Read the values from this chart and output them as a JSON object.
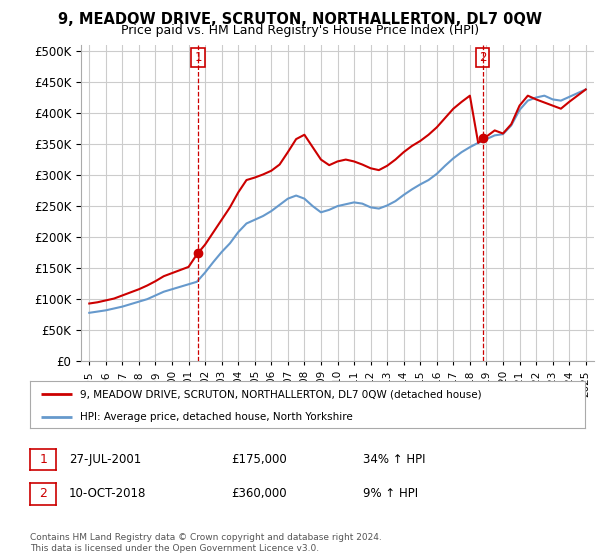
{
  "title": "9, MEADOW DRIVE, SCRUTON, NORTHALLERTON, DL7 0QW",
  "subtitle": "Price paid vs. HM Land Registry's House Price Index (HPI)",
  "legend_label1": "9, MEADOW DRIVE, SCRUTON, NORTHALLERTON, DL7 0QW (detached house)",
  "legend_label2": "HPI: Average price, detached house, North Yorkshire",
  "annotation1_date": "27-JUL-2001",
  "annotation1_price": "£175,000",
  "annotation1_hpi": "34% ↑ HPI",
  "annotation2_date": "10-OCT-2018",
  "annotation2_price": "£360,000",
  "annotation2_hpi": "9% ↑ HPI",
  "copyright": "Contains HM Land Registry data © Crown copyright and database right 2024.\nThis data is licensed under the Open Government Licence v3.0.",
  "yticks": [
    0,
    50000,
    100000,
    150000,
    200000,
    250000,
    300000,
    350000,
    400000,
    450000,
    500000
  ],
  "red_color": "#cc0000",
  "blue_color": "#6699cc",
  "background_color": "#ffffff",
  "grid_color": "#cccccc",
  "sale1_x": 2001.57,
  "sale1_y": 175000,
  "sale2_x": 2018.78,
  "sale2_y": 360000,
  "xmin": 1994.5,
  "xmax": 2025.5,
  "ymin": 0,
  "ymax": 510000
}
